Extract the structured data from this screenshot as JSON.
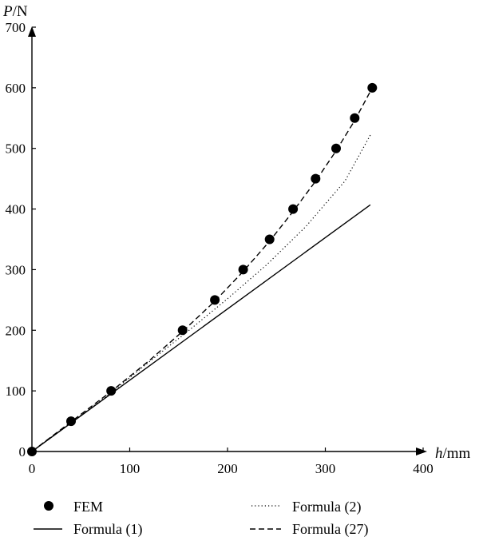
{
  "chart_data": {
    "type": "line",
    "title": "",
    "xlabel": {
      "var": "h",
      "unit": "/mm"
    },
    "ylabel": {
      "var": "P",
      "unit": "/N"
    },
    "xlim": [
      0,
      400
    ],
    "ylim": [
      0,
      700
    ],
    "xticks": [
      0,
      100,
      200,
      300,
      400
    ],
    "yticks": [
      0,
      100,
      200,
      300,
      400,
      500,
      600,
      700
    ],
    "grid": false,
    "legend_position": "bottom",
    "series": [
      {
        "name": "FEM",
        "style": "markers",
        "color": "#000000",
        "x": [
          0,
          40,
          81,
          154,
          187,
          216,
          243,
          267,
          290,
          311,
          330,
          348
        ],
        "y": [
          0,
          50,
          100,
          200,
          250,
          300,
          350,
          400,
          450,
          500,
          550,
          600
        ]
      },
      {
        "name": "Formula (1)",
        "style": "solid",
        "color": "#000000",
        "x": [
          0,
          346
        ],
        "y": [
          0,
          407
        ]
      },
      {
        "name": "Formula (2)",
        "style": "dotted",
        "color": "#000000",
        "x": [
          0,
          40,
          81,
          120,
          160,
          200,
          240,
          280,
          320,
          346
        ],
        "y": [
          0,
          48,
          97,
          148,
          199,
          252,
          308,
          371,
          446,
          522
        ]
      },
      {
        "name": "Formula (27)",
        "style": "dashed",
        "color": "#000000",
        "x": [
          0,
          40,
          81,
          120,
          154,
          187,
          216,
          243,
          267,
          290,
          311,
          330,
          348
        ],
        "y": [
          0,
          49,
          99,
          150,
          198,
          248,
          297,
          347,
          396,
          446,
          496,
          546,
          600
        ]
      }
    ]
  }
}
